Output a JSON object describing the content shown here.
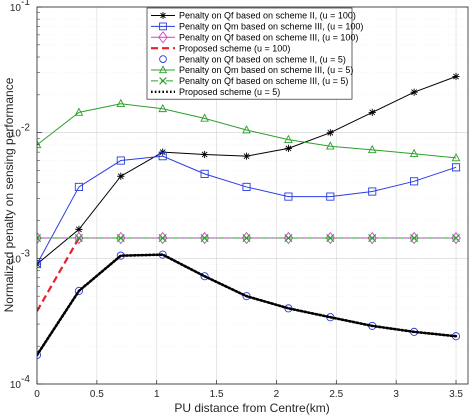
{
  "chart_data": {
    "type": "line",
    "xlabel": "PU distance from Centre(km)",
    "ylabel": "Normalized penalty on sensing performance",
    "xlim": [
      0,
      3.6
    ],
    "ylim": [
      0.0001,
      0.1
    ],
    "yscale": "log",
    "grid": true,
    "legend_position": "top-right",
    "x_ticks": [
      0,
      0.5,
      1,
      1.5,
      2,
      2.5,
      3,
      3.5
    ],
    "x_tick_labels": [
      "0",
      "0.5",
      "1",
      "1.5",
      "2",
      "2.5",
      "3",
      "3.5"
    ],
    "y_ticks": [
      0.0001,
      0.001,
      0.01,
      0.1
    ],
    "y_tick_labels": [
      {
        "base": "10",
        "exp": "-4"
      },
      {
        "base": "10",
        "exp": "-3"
      },
      {
        "base": "10",
        "exp": "-2"
      },
      {
        "base": "10",
        "exp": "-1"
      }
    ],
    "series": [
      {
        "name": "Penalty on Qf based on scheme II, (u = 100)",
        "color": "#000000",
        "marker": "star",
        "dash": "solid",
        "x": [
          0,
          0.35,
          0.7,
          1.05,
          1.4,
          1.75,
          2.1,
          2.45,
          2.8,
          3.15,
          3.5
        ],
        "y": [
          0.0009,
          0.0017,
          0.0045,
          0.007,
          0.0067,
          0.0065,
          0.0075,
          0.01,
          0.0145,
          0.021,
          0.028
        ]
      },
      {
        "name": "Penalty on Qm based on scheme III, (u = 100)",
        "color": "#2a3ce0",
        "marker": "square",
        "dash": "solid",
        "x": [
          0,
          0.35,
          0.7,
          1.05,
          1.4,
          1.75,
          2.1,
          2.45,
          2.8,
          3.15,
          3.5
        ],
        "y": [
          0.0009,
          0.0037,
          0.006,
          0.0065,
          0.0047,
          0.0037,
          0.0031,
          0.0031,
          0.0034,
          0.0041,
          0.0053
        ]
      },
      {
        "name": "Penalty on Qf based on scheme III, (u = 100)",
        "color": "#cc44cc",
        "marker": "diamond",
        "dash": "solid",
        "x": [
          0,
          0.35,
          0.7,
          1.05,
          1.4,
          1.75,
          2.1,
          2.45,
          2.8,
          3.15,
          3.5
        ],
        "y": [
          0.00145,
          0.00145,
          0.00145,
          0.00145,
          0.00145,
          0.00145,
          0.00145,
          0.00145,
          0.00145,
          0.00145,
          0.00145
        ]
      },
      {
        "name": "Proposed scheme (u = 100)",
        "color": "#e8202a",
        "marker": "none",
        "dash": "dashed",
        "x": [
          0,
          0.35
        ],
        "y": [
          0.00038,
          0.00145
        ]
      },
      {
        "name": "Penalty on Qf based on scheme II, (u = 5)",
        "color": "#2a3ce0",
        "marker": "circle",
        "dash": "none",
        "x": [
          0,
          0.35,
          0.7,
          1.05,
          1.4,
          1.75,
          2.1,
          2.45,
          2.8,
          3.15,
          3.5
        ],
        "y": [
          0.00017,
          0.00055,
          0.00105,
          0.00107,
          0.00072,
          0.0005,
          0.0004,
          0.00034,
          0.00029,
          0.00026,
          0.00024
        ]
      },
      {
        "name": "Penalty on Qm based on scheme III, (u = 5)",
        "color": "#2ca02c",
        "marker": "triangle",
        "dash": "solid",
        "x": [
          0,
          0.35,
          0.7,
          1.05,
          1.4,
          1.75,
          2.1,
          2.45,
          2.8,
          3.15,
          3.5
        ],
        "y": [
          0.008,
          0.0145,
          0.017,
          0.0155,
          0.013,
          0.0105,
          0.0088,
          0.0078,
          0.0073,
          0.0068,
          0.0063
        ]
      },
      {
        "name": "Penalty on Qf based on scheme III, (u = 5)",
        "color": "#2ca02c",
        "marker": "x",
        "dash": "dashdot",
        "x": [
          0,
          0.35,
          0.7,
          1.05,
          1.4,
          1.75,
          2.1,
          2.45,
          2.8,
          3.15,
          3.5
        ],
        "y": [
          0.00145,
          0.00145,
          0.00145,
          0.00145,
          0.00145,
          0.00145,
          0.00145,
          0.00145,
          0.00145,
          0.00145,
          0.00145
        ]
      },
      {
        "name": "Proposed scheme (u = 5)",
        "color": "#000000",
        "marker": "none",
        "dash": "dotted",
        "x": [
          0,
          0.35,
          0.7,
          1.05,
          1.4,
          1.75,
          2.1,
          2.45,
          2.8,
          3.15,
          3.5
        ],
        "y": [
          0.00017,
          0.00055,
          0.00105,
          0.00107,
          0.00072,
          0.0005,
          0.0004,
          0.00034,
          0.00029,
          0.00026,
          0.00024
        ]
      }
    ]
  }
}
